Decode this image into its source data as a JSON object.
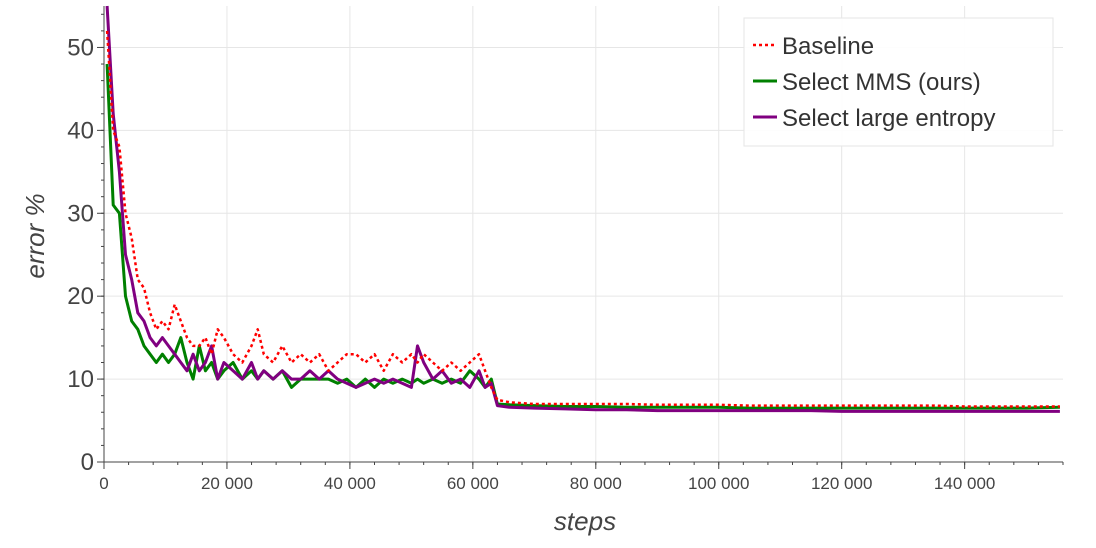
{
  "chart_data": {
    "type": "line",
    "xlabel": "steps",
    "ylabel": "error %",
    "xlim": [
      0,
      156000
    ],
    "ylim": [
      0,
      55
    ],
    "xticks": [
      0,
      20000,
      40000,
      60000,
      80000,
      100000,
      120000,
      140000
    ],
    "xtick_labels": [
      "0",
      "20 000",
      "40 000",
      "60 000",
      "80 000",
      "100 000",
      "120 000",
      "140 000"
    ],
    "yticks": [
      0,
      10,
      20,
      30,
      40,
      50
    ],
    "ytick_labels": [
      "0",
      "10",
      "20",
      "30",
      "40",
      "50"
    ],
    "grid": true,
    "legend_position": "top-right",
    "series": [
      {
        "name": "Baseline",
        "color": "#ff0000",
        "style": "dotted",
        "x": [
          500,
          1500,
          2500,
          3500,
          4500,
          5500,
          6500,
          7500,
          8500,
          9500,
          10500,
          11500,
          12500,
          13500,
          14500,
          15500,
          16500,
          17500,
          18500,
          19500,
          21000,
          22500,
          24000,
          25000,
          26000,
          27500,
          29000,
          30500,
          32000,
          33500,
          35000,
          36500,
          38000,
          39500,
          41000,
          42500,
          44000,
          45500,
          47000,
          48500,
          50000,
          51000,
          52000,
          53500,
          55000,
          56500,
          58000,
          59500,
          61000,
          62000,
          63000,
          64000,
          66000,
          70000,
          75000,
          80000,
          85000,
          90000,
          95000,
          100000,
          105000,
          110000,
          115000,
          120000,
          125000,
          130000,
          135000,
          140000,
          145000,
          150000,
          155500
        ],
        "y": [
          52,
          40,
          38,
          30,
          27,
          22,
          21,
          18,
          16,
          17,
          16,
          19,
          17,
          15,
          14,
          14,
          15,
          13,
          16,
          15,
          13,
          12,
          14,
          16,
          13,
          12,
          14,
          12,
          13,
          12,
          13,
          11,
          12,
          13,
          13,
          12,
          13,
          11,
          13,
          12,
          13,
          12,
          13,
          12,
          11,
          12,
          11,
          12,
          13,
          11,
          9,
          7.5,
          7.2,
          7.0,
          7.0,
          7.0,
          7.0,
          6.9,
          6.9,
          6.9,
          6.8,
          6.8,
          6.8,
          6.8,
          6.8,
          6.8,
          6.8,
          6.7,
          6.7,
          6.7,
          6.7
        ]
      },
      {
        "name": "Select MMS (ours)",
        "color": "#008000",
        "style": "solid",
        "x": [
          500,
          1500,
          2500,
          3500,
          4500,
          5500,
          6500,
          7500,
          8500,
          9500,
          10500,
          11500,
          12500,
          13500,
          14500,
          15500,
          16500,
          17500,
          18500,
          19500,
          21000,
          22500,
          24000,
          25000,
          26000,
          27500,
          29000,
          30500,
          32000,
          33500,
          35000,
          36500,
          38000,
          39500,
          41000,
          42500,
          44000,
          45500,
          47000,
          48500,
          50000,
          51000,
          52000,
          53500,
          55000,
          56500,
          58000,
          59500,
          61000,
          62000,
          63000,
          64000,
          66000,
          70000,
          75000,
          80000,
          85000,
          90000,
          95000,
          100000,
          105000,
          110000,
          115000,
          120000,
          125000,
          130000,
          135000,
          140000,
          145000,
          150000,
          155500
        ],
        "y": [
          48,
          31,
          30,
          20,
          17,
          16,
          14,
          13,
          12,
          13,
          12,
          13,
          15,
          12,
          10,
          14,
          11,
          12,
          10,
          11,
          12,
          10,
          11,
          10,
          11,
          10,
          11,
          9,
          10,
          10,
          10,
          10,
          9.5,
          10,
          9,
          10,
          9,
          10,
          9.5,
          10,
          9.5,
          10,
          9.5,
          10,
          9.5,
          10,
          9.5,
          11,
          10,
          9,
          10,
          7,
          6.9,
          6.8,
          6.7,
          6.7,
          6.6,
          6.6,
          6.6,
          6.6,
          6.5,
          6.5,
          6.5,
          6.5,
          6.5,
          6.5,
          6.5,
          6.5,
          6.5,
          6.5,
          6.6
        ]
      },
      {
        "name": "Select large entropy",
        "color": "#800080",
        "style": "solid",
        "x": [
          500,
          1500,
          2500,
          3500,
          4500,
          5500,
          6500,
          7500,
          8500,
          9500,
          10500,
          11500,
          12500,
          13500,
          14500,
          15500,
          16500,
          17500,
          18500,
          19500,
          21000,
          22500,
          24000,
          25000,
          26000,
          27500,
          29000,
          30500,
          32000,
          33500,
          35000,
          36500,
          38000,
          39500,
          41000,
          42500,
          44000,
          45500,
          47000,
          48500,
          50000,
          51000,
          52000,
          53500,
          55000,
          56500,
          58000,
          59500,
          61000,
          62000,
          63000,
          64000,
          66000,
          70000,
          75000,
          80000,
          85000,
          90000,
          95000,
          100000,
          105000,
          110000,
          115000,
          120000,
          125000,
          130000,
          135000,
          140000,
          145000,
          150000,
          155500
        ],
        "y": [
          55,
          42,
          35,
          25,
          22,
          18,
          17,
          15,
          14,
          15,
          14,
          13,
          12,
          11,
          13,
          11,
          12,
          14,
          10,
          12,
          11,
          10,
          12,
          10,
          11,
          10,
          11,
          10,
          10,
          11,
          10,
          11,
          10,
          9.5,
          9,
          9.5,
          10,
          9.5,
          10,
          9.5,
          9,
          14,
          12,
          10,
          11,
          9.5,
          10,
          9,
          11,
          9,
          9.5,
          6.8,
          6.6,
          6.5,
          6.4,
          6.3,
          6.3,
          6.2,
          6.2,
          6.2,
          6.2,
          6.2,
          6.2,
          6.1,
          6.1,
          6.1,
          6.1,
          6.1,
          6.1,
          6.1,
          6.1
        ]
      }
    ]
  }
}
